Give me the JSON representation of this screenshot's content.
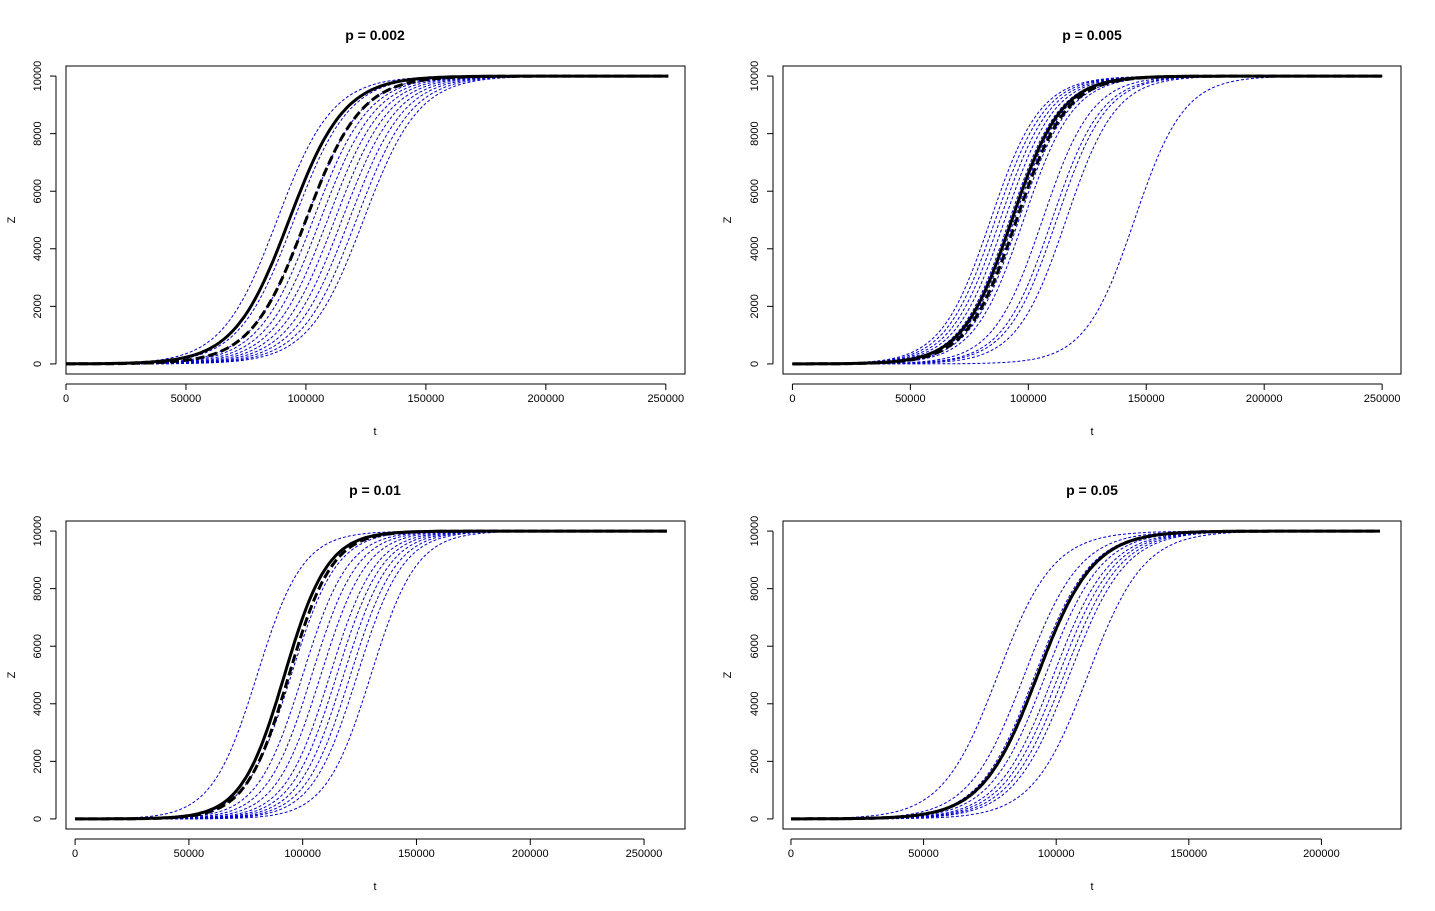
{
  "colors": {
    "background": "#ffffff",
    "sim_line": "#0000cc",
    "mean_line": "#000000"
  },
  "chart_data": [
    {
      "type": "line",
      "title": "p = 0.002",
      "xlabel": "t",
      "ylabel": "Z",
      "xlim": [
        0,
        258000
      ],
      "ylim": [
        -350,
        10350
      ],
      "xticks": [
        0,
        50000,
        100000,
        150000,
        200000,
        250000
      ],
      "xtick_labels": [
        "0",
        "50000",
        "100000",
        "150000",
        "200000",
        "250000"
      ],
      "yticks": [
        0,
        2000,
        4000,
        6000,
        8000,
        10000
      ],
      "ytick_labels": [
        "0",
        "2000",
        "4000",
        "6000",
        "8000",
        "10000"
      ],
      "x_end": 251000,
      "asymptote": 10000,
      "simulated_midpoints": [
        88000,
        95000,
        100000,
        103000,
        106000,
        109000,
        112000,
        115000,
        118000,
        121000,
        124000
      ],
      "simulated_scale": 11500,
      "mean_solid_midpoint": 93000,
      "mean_dashed_midpoint": 100000,
      "mean_scale": 11500
    },
    {
      "type": "line",
      "title": "p = 0.005",
      "xlabel": "t",
      "ylabel": "Z",
      "xlim": [
        -4000,
        258000
      ],
      "ylim": [
        -350,
        10350
      ],
      "xticks": [
        0,
        50000,
        100000,
        150000,
        200000,
        250000
      ],
      "xtick_labels": [
        "0",
        "50000",
        "100000",
        "150000",
        "200000",
        "250000"
      ],
      "yticks": [
        0,
        2000,
        4000,
        6000,
        8000,
        10000
      ],
      "ytick_labels": [
        "0",
        "2000",
        "4000",
        "6000",
        "8000",
        "10000"
      ],
      "x_end": 250000,
      "asymptote": 10000,
      "simulated_midpoints": [
        84000,
        86000,
        88000,
        90000,
        92000,
        94000,
        96000,
        98000,
        106000,
        110000,
        112000,
        116000,
        145000
      ],
      "simulated_scale": 10500,
      "mean_solid_midpoint": 93000,
      "mean_dashed_midpoint": 95000,
      "mean_scale": 10500
    },
    {
      "type": "line",
      "title": "p = 0.01",
      "xlabel": "t",
      "ylabel": "Z",
      "xlim": [
        -4000,
        268000
      ],
      "ylim": [
        -350,
        10350
      ],
      "xticks": [
        0,
        50000,
        100000,
        150000,
        200000,
        250000
      ],
      "xtick_labels": [
        "0",
        "50000",
        "100000",
        "150000",
        "200000",
        "250000"
      ],
      "yticks": [
        0,
        2000,
        4000,
        6000,
        8000,
        10000
      ],
      "ytick_labels": [
        "0",
        "2000",
        "4000",
        "6000",
        "8000",
        "10000"
      ],
      "x_end": 260000,
      "asymptote": 10000,
      "simulated_midpoints": [
        80000,
        95000,
        100000,
        104000,
        108000,
        112000,
        115000,
        118000,
        121000,
        124000,
        130000
      ],
      "simulated_scale": 10000,
      "mean_solid_midpoint": 92000,
      "mean_dashed_midpoint": 94000,
      "mean_scale": 9500
    },
    {
      "type": "line",
      "title": "p = 0.05",
      "xlabel": "t",
      "ylabel": "Z",
      "xlim": [
        -3000,
        230000
      ],
      "ylim": [
        -350,
        10350
      ],
      "xticks": [
        0,
        50000,
        100000,
        150000,
        200000
      ],
      "xtick_labels": [
        "0",
        "50000",
        "100000",
        "150000",
        "200000"
      ],
      "yticks": [
        0,
        2000,
        4000,
        6000,
        8000,
        10000
      ],
      "ytick_labels": [
        "0",
        "2000",
        "4000",
        "6000",
        "8000",
        "10000"
      ],
      "x_end": 222000,
      "asymptote": 10000,
      "simulated_midpoints": [
        78000,
        88000,
        92000,
        96000,
        99000,
        101000,
        103000,
        105000,
        112000
      ],
      "simulated_scale": 10500,
      "mean_solid_midpoint": 93000,
      "mean_dashed_midpoint": 93000,
      "mean_scale": 10500
    }
  ]
}
